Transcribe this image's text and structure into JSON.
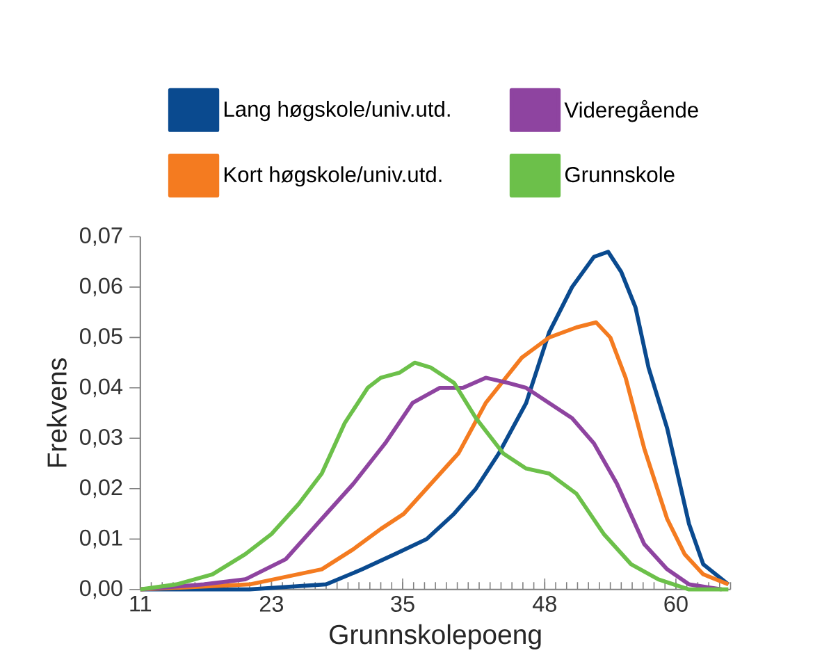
{
  "chart_data": {
    "type": "line",
    "xlabel": "Grunnskolepoeng",
    "ylabel": "Frekvens",
    "xlim": [
      11,
      65
    ],
    "ylim": [
      0,
      0.07
    ],
    "xticks": [
      11,
      23,
      35,
      48,
      60
    ],
    "yticks": [
      {
        "value": 0,
        "label": "0,00"
      },
      {
        "value": 0.01,
        "label": "0,01"
      },
      {
        "value": 0.02,
        "label": "0,02"
      },
      {
        "value": 0.03,
        "label": "0,03"
      },
      {
        "value": 0.04,
        "label": "0,04"
      },
      {
        "value": 0.05,
        "label": "0,05"
      },
      {
        "value": 0.06,
        "label": "0,06"
      },
      {
        "value": 0.07,
        "label": "0,07"
      }
    ],
    "grid": false,
    "legend": "top",
    "marker": "none",
    "line_style": "solid",
    "series": [
      {
        "name": "Lang høgskole/univ.utd.",
        "color": "#0a4a8f",
        "x": [
          11,
          21,
          28,
          31.3,
          34.3,
          37.2,
          39.7,
          41.7,
          43.8,
          46.3,
          48.4,
          50.5,
          52.5,
          53.8,
          55,
          56.3,
          57.5,
          59.2,
          61.2,
          62.5,
          64.8
        ],
        "values": [
          0,
          0,
          0.001,
          0.004,
          0.007,
          0.01,
          0.015,
          0.02,
          0.027,
          0.037,
          0.051,
          0.06,
          0.066,
          0.067,
          0.063,
          0.056,
          0.044,
          0.032,
          0.013,
          0.005,
          0.001
        ]
      },
      {
        "name": "Kort høgskole/univ.utd.",
        "color": "#f47b20",
        "x": [
          11,
          21,
          27.6,
          30.5,
          33,
          35.1,
          37.6,
          40.1,
          42.6,
          45.9,
          48.4,
          50.9,
          52.7,
          54,
          55.4,
          57.1,
          59.2,
          60.8,
          62.5,
          64.8
        ],
        "values": [
          0,
          0.001,
          0.004,
          0.008,
          0.012,
          0.015,
          0.021,
          0.027,
          0.037,
          0.046,
          0.05,
          0.052,
          0.053,
          0.05,
          0.042,
          0.028,
          0.014,
          0.007,
          0.003,
          0.001
        ]
      },
      {
        "name": "Videregående",
        "color": "#8e44a0",
        "x": [
          11,
          16.8,
          20.6,
          24.3,
          27.6,
          30.5,
          33.4,
          35.9,
          38.4,
          40.5,
          42.6,
          44.6,
          46.3,
          48.4,
          50.5,
          52.5,
          54.6,
          57.1,
          59.2,
          61.2,
          64.2
        ],
        "values": [
          0,
          0.001,
          0.002,
          0.006,
          0.014,
          0.021,
          0.029,
          0.037,
          0.04,
          0.04,
          0.042,
          0.041,
          0.04,
          0.037,
          0.034,
          0.029,
          0.021,
          0.009,
          0.004,
          0.001,
          0
        ]
      },
      {
        "name": "Grunnskole",
        "color": "#6cc04a",
        "x": [
          11,
          14.3,
          17.6,
          20.6,
          23,
          25.5,
          27.6,
          29.7,
          31.8,
          33,
          34.7,
          36.1,
          37.6,
          39.7,
          41.7,
          44.2,
          46.3,
          48.4,
          50.9,
          53.4,
          55.9,
          58.4,
          61.2,
          64.8
        ],
        "values": [
          0,
          0.001,
          0.003,
          0.007,
          0.011,
          0.017,
          0.023,
          0.033,
          0.04,
          0.042,
          0.043,
          0.045,
          0.044,
          0.041,
          0.034,
          0.027,
          0.024,
          0.023,
          0.019,
          0.011,
          0.005,
          0.002,
          0,
          0
        ]
      }
    ]
  }
}
